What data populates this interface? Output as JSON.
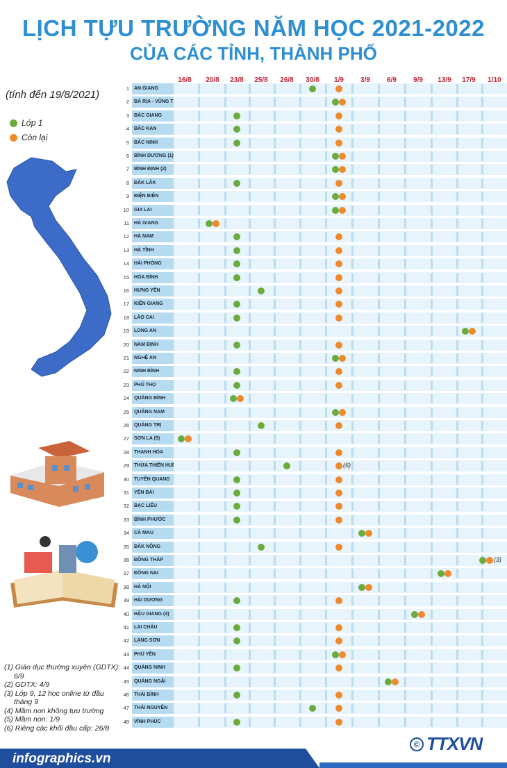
{
  "title": "LỊCH TỰU TRƯỜNG NĂM HỌC 2021-2022",
  "subtitle": "CỦA CÁC TỈNH, THÀNH PHỐ",
  "as_of": "(tính đến 19/8/2021)",
  "footer": {
    "site": "infographics.vn",
    "copyright": "©",
    "logo": "TTXVN",
    "logo_sub": "Vietnam News Agency"
  },
  "notes": [
    "(1) Giáo dục thường xuyên (GDTX): 6/9",
    "(2) GDTX: 4/9",
    "(3) Lớp 9, 12 học online từ đầu tháng 9",
    "(4) Mầm non không tựu trường",
    "(5) Mầm non: 1/9",
    "(6) Riêng các khối đầu cấp: 26/8"
  ],
  "chart_data": {
    "type": "scatter",
    "title": "LỊCH TỰU TRƯỜNG NĂM HỌC 2021-2022 CỦA CÁC TỈNH, THÀNH PHỐ",
    "legend": {
      "placement": "top-left",
      "entries": [
        {
          "name": "Lớp 1",
          "color": "#6aab3c"
        },
        {
          "name": "Còn lại",
          "color": "#ee8a2c"
        }
      ]
    },
    "dates": [
      "16/8",
      "20/8",
      "23/8",
      "25/8",
      "26/8",
      "30/8",
      "1/9",
      "3/9",
      "6/9",
      "9/9",
      "13/9",
      "17/9",
      "1/10"
    ],
    "rows": [
      {
        "no": "1",
        "name": "AN GIANG",
        "lop1": "30/8",
        "con_lai": "1/9"
      },
      {
        "no": "2",
        "name": "BÀ RỊA - VŨNG TÀU",
        "lop1": "1/9",
        "con_lai": "1/9"
      },
      {
        "no": "3",
        "name": "BẮC GIANG",
        "lop1": "23/8",
        "con_lai": "1/9"
      },
      {
        "no": "4",
        "name": "BẮC KẠN",
        "lop1": "23/8",
        "con_lai": "1/9"
      },
      {
        "no": "5",
        "name": "BẮC NINH",
        "lop1": "23/8",
        "con_lai": "1/9"
      },
      {
        "no": "6",
        "name": "BÌNH DƯƠNG (1)",
        "lop1": "1/9",
        "con_lai": "1/9"
      },
      {
        "no": "7",
        "name": "BÌNH ĐỊNH (2)",
        "lop1": "1/9",
        "con_lai": "1/9"
      },
      {
        "no": "8",
        "name": "ĐẮK LẮK",
        "lop1": "23/8",
        "con_lai": "1/9"
      },
      {
        "no": "9",
        "name": "ĐIỆN BIÊN",
        "lop1": "1/9",
        "con_lai": "1/9"
      },
      {
        "no": "10",
        "name": "GIA LAI",
        "lop1": "1/9",
        "con_lai": "1/9"
      },
      {
        "no": "11",
        "name": "HÀ GIANG",
        "lop1": "20/8",
        "con_lai": "20/8"
      },
      {
        "no": "12",
        "name": "HÀ NAM",
        "lop1": "23/8",
        "con_lai": "1/9"
      },
      {
        "no": "13",
        "name": "HÀ TĨNH",
        "lop1": "23/8",
        "con_lai": "1/9"
      },
      {
        "no": "14",
        "name": "HẢI PHÒNG",
        "lop1": "23/8",
        "con_lai": "1/9"
      },
      {
        "no": "15",
        "name": "HÒA BÌNH",
        "lop1": "23/8",
        "con_lai": "1/9"
      },
      {
        "no": "16",
        "name": "HƯNG YÊN",
        "lop1": "25/8",
        "con_lai": "1/9"
      },
      {
        "no": "17",
        "name": "KIÊN GIANG",
        "lop1": "23/8",
        "con_lai": "1/9"
      },
      {
        "no": "18",
        "name": "LÀO CAI",
        "lop1": "23/8",
        "con_lai": "1/9"
      },
      {
        "no": "19",
        "name": "LONG AN",
        "lop1": "17/9",
        "con_lai": "17/9"
      },
      {
        "no": "20",
        "name": "NAM ĐỊNH",
        "lop1": "23/8",
        "con_lai": "1/9"
      },
      {
        "no": "21",
        "name": "NGHỆ AN",
        "lop1": "1/9",
        "con_lai": "1/9"
      },
      {
        "no": "22",
        "name": "NINH BÌNH",
        "lop1": "23/8",
        "con_lai": "1/9"
      },
      {
        "no": "23",
        "name": "PHÚ THỌ",
        "lop1": "23/8",
        "con_lai": "1/9"
      },
      {
        "no": "24",
        "name": "QUẢNG BÌNH",
        "lop1": "23/8",
        "con_lai": "23/8"
      },
      {
        "no": "25",
        "name": "QUẢNG NAM",
        "lop1": "1/9",
        "con_lai": "1/9"
      },
      {
        "no": "26",
        "name": "QUẢNG TRỊ",
        "lop1": "25/8",
        "con_lai": "1/9"
      },
      {
        "no": "27",
        "name": "SƠN LA (5)",
        "lop1": "16/8",
        "con_lai": "16/8"
      },
      {
        "no": "28",
        "name": "THANH HÓA",
        "lop1": "23/8",
        "con_lai": "1/9"
      },
      {
        "no": "29",
        "name": "THỪA THIÊN HUẾ",
        "lop1": "26/8",
        "con_lai": "1/9",
        "note": "(6)"
      },
      {
        "no": "30",
        "name": "TUYÊN QUANG",
        "lop1": "23/8",
        "con_lai": "1/9"
      },
      {
        "no": "31",
        "name": "YÊN BÁI",
        "lop1": "23/8",
        "con_lai": "1/9"
      },
      {
        "no": "32",
        "name": "BẠC LIÊU",
        "lop1": "23/8",
        "con_lai": "1/9"
      },
      {
        "no": "33",
        "name": "BÌNH PHƯỚC",
        "lop1": "23/8",
        "con_lai": "1/9"
      },
      {
        "no": "34",
        "name": "CÀ MAU",
        "lop1": "3/9",
        "con_lai": "3/9"
      },
      {
        "no": "35",
        "name": "ĐẮK NÔNG",
        "lop1": "25/8",
        "con_lai": "1/9"
      },
      {
        "no": "36",
        "name": "ĐỒNG THÁP",
        "lop1": "1/10",
        "con_lai": "1/10",
        "note": "(3)"
      },
      {
        "no": "37",
        "name": "ĐỒNG NAI",
        "lop1": "13/9",
        "con_lai": "13/9"
      },
      {
        "no": "38",
        "name": "HÀ NỘI",
        "lop1": "3/9",
        "con_lai": "3/9"
      },
      {
        "no": "39",
        "name": "HẢI DƯƠNG",
        "lop1": "23/8",
        "con_lai": "1/9"
      },
      {
        "no": "40",
        "name": "HẬU GIANG (4)",
        "lop1": "9/9",
        "con_lai": "9/9"
      },
      {
        "no": "41",
        "name": "LAI CHÂU",
        "lop1": "23/8",
        "con_lai": "1/9"
      },
      {
        "no": "42",
        "name": "LẠNG SƠN",
        "lop1": "23/8",
        "con_lai": "1/9"
      },
      {
        "no": "43",
        "name": "PHÚ YÊN",
        "lop1": "1/9",
        "con_lai": "1/9"
      },
      {
        "no": "44",
        "name": "QUẢNG NINH",
        "lop1": "23/8",
        "con_lai": "1/9"
      },
      {
        "no": "45",
        "name": "QUẢNG NGÃI",
        "lop1": "6/9",
        "con_lai": "6/9"
      },
      {
        "no": "46",
        "name": "THÁI BÌNH",
        "lop1": "23/8",
        "con_lai": "1/9"
      },
      {
        "no": "47",
        "name": "THÁI NGUYÊN",
        "lop1": "30/8",
        "con_lai": "1/9"
      },
      {
        "no": "48",
        "name": "VĨNH PHÚC",
        "lop1": "23/8",
        "con_lai": "1/9"
      }
    ]
  }
}
